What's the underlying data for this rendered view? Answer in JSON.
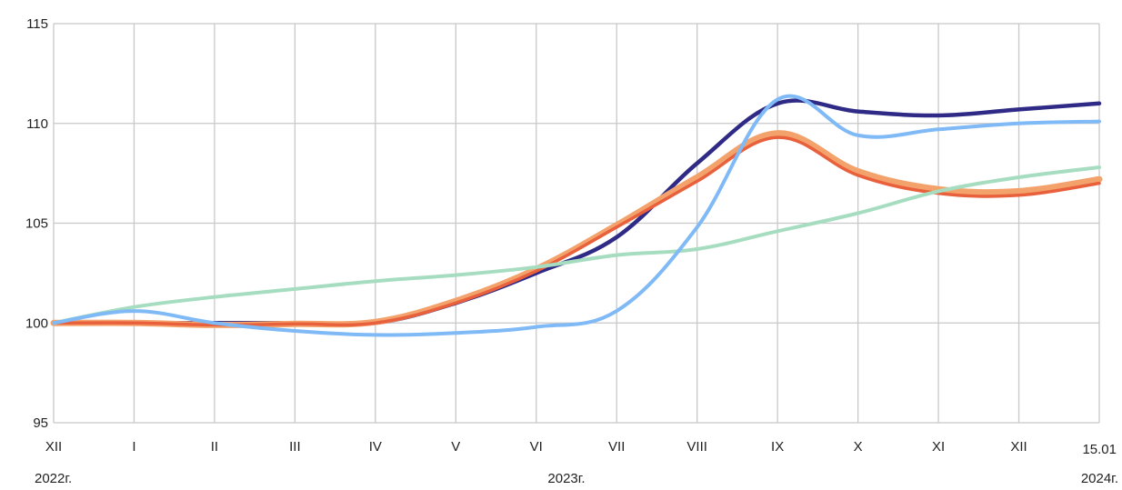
{
  "chart_data": {
    "type": "line",
    "title": "",
    "xlabel": "",
    "ylabel": "",
    "ylim": [
      95,
      115
    ],
    "yticks": [
      "95",
      "100",
      "105",
      "110",
      "115"
    ],
    "categories": [
      "XII",
      "I",
      "II",
      "III",
      "IV",
      "V",
      "VI",
      "VII",
      "VIII",
      "IX",
      "X",
      "XI",
      "XII",
      "15.01"
    ],
    "year_labels": [
      "2022г.",
      "2023г.",
      "2024г."
    ],
    "grid": true,
    "legend": "none",
    "series": [
      {
        "color": "#2E2A86",
        "width": 4.5,
        "values": [
          100,
          100,
          100,
          100,
          100,
          101,
          102.5,
          104.3,
          108,
          111,
          110.6,
          110.4,
          110.7,
          111
        ]
      },
      {
        "color": "#F4A26B",
        "width": 7,
        "values": [
          100,
          100,
          99.9,
          99.95,
          100.05,
          101.1,
          102.7,
          104.9,
          107.3,
          109.5,
          107.6,
          106.7,
          106.6,
          107.2
        ]
      },
      {
        "color": "#E8603C",
        "width": 3.5,
        "values": [
          100,
          100,
          99.9,
          99.95,
          100,
          101,
          102.6,
          104.8,
          107.1,
          109.3,
          107.4,
          106.5,
          106.4,
          107
        ]
      },
      {
        "color": "#A6DDC0",
        "width": 4,
        "values": [
          100,
          100.8,
          101.3,
          101.7,
          102.1,
          102.4,
          102.8,
          103.4,
          103.7,
          104.6,
          105.5,
          106.6,
          107.3,
          107.8
        ]
      },
      {
        "color": "#7FB9F6",
        "width": 4,
        "values": [
          100,
          100.6,
          100,
          99.6,
          99.4,
          99.5,
          99.8,
          100.6,
          104.8,
          111.2,
          109.4,
          109.7,
          110,
          110.1
        ]
      }
    ]
  }
}
